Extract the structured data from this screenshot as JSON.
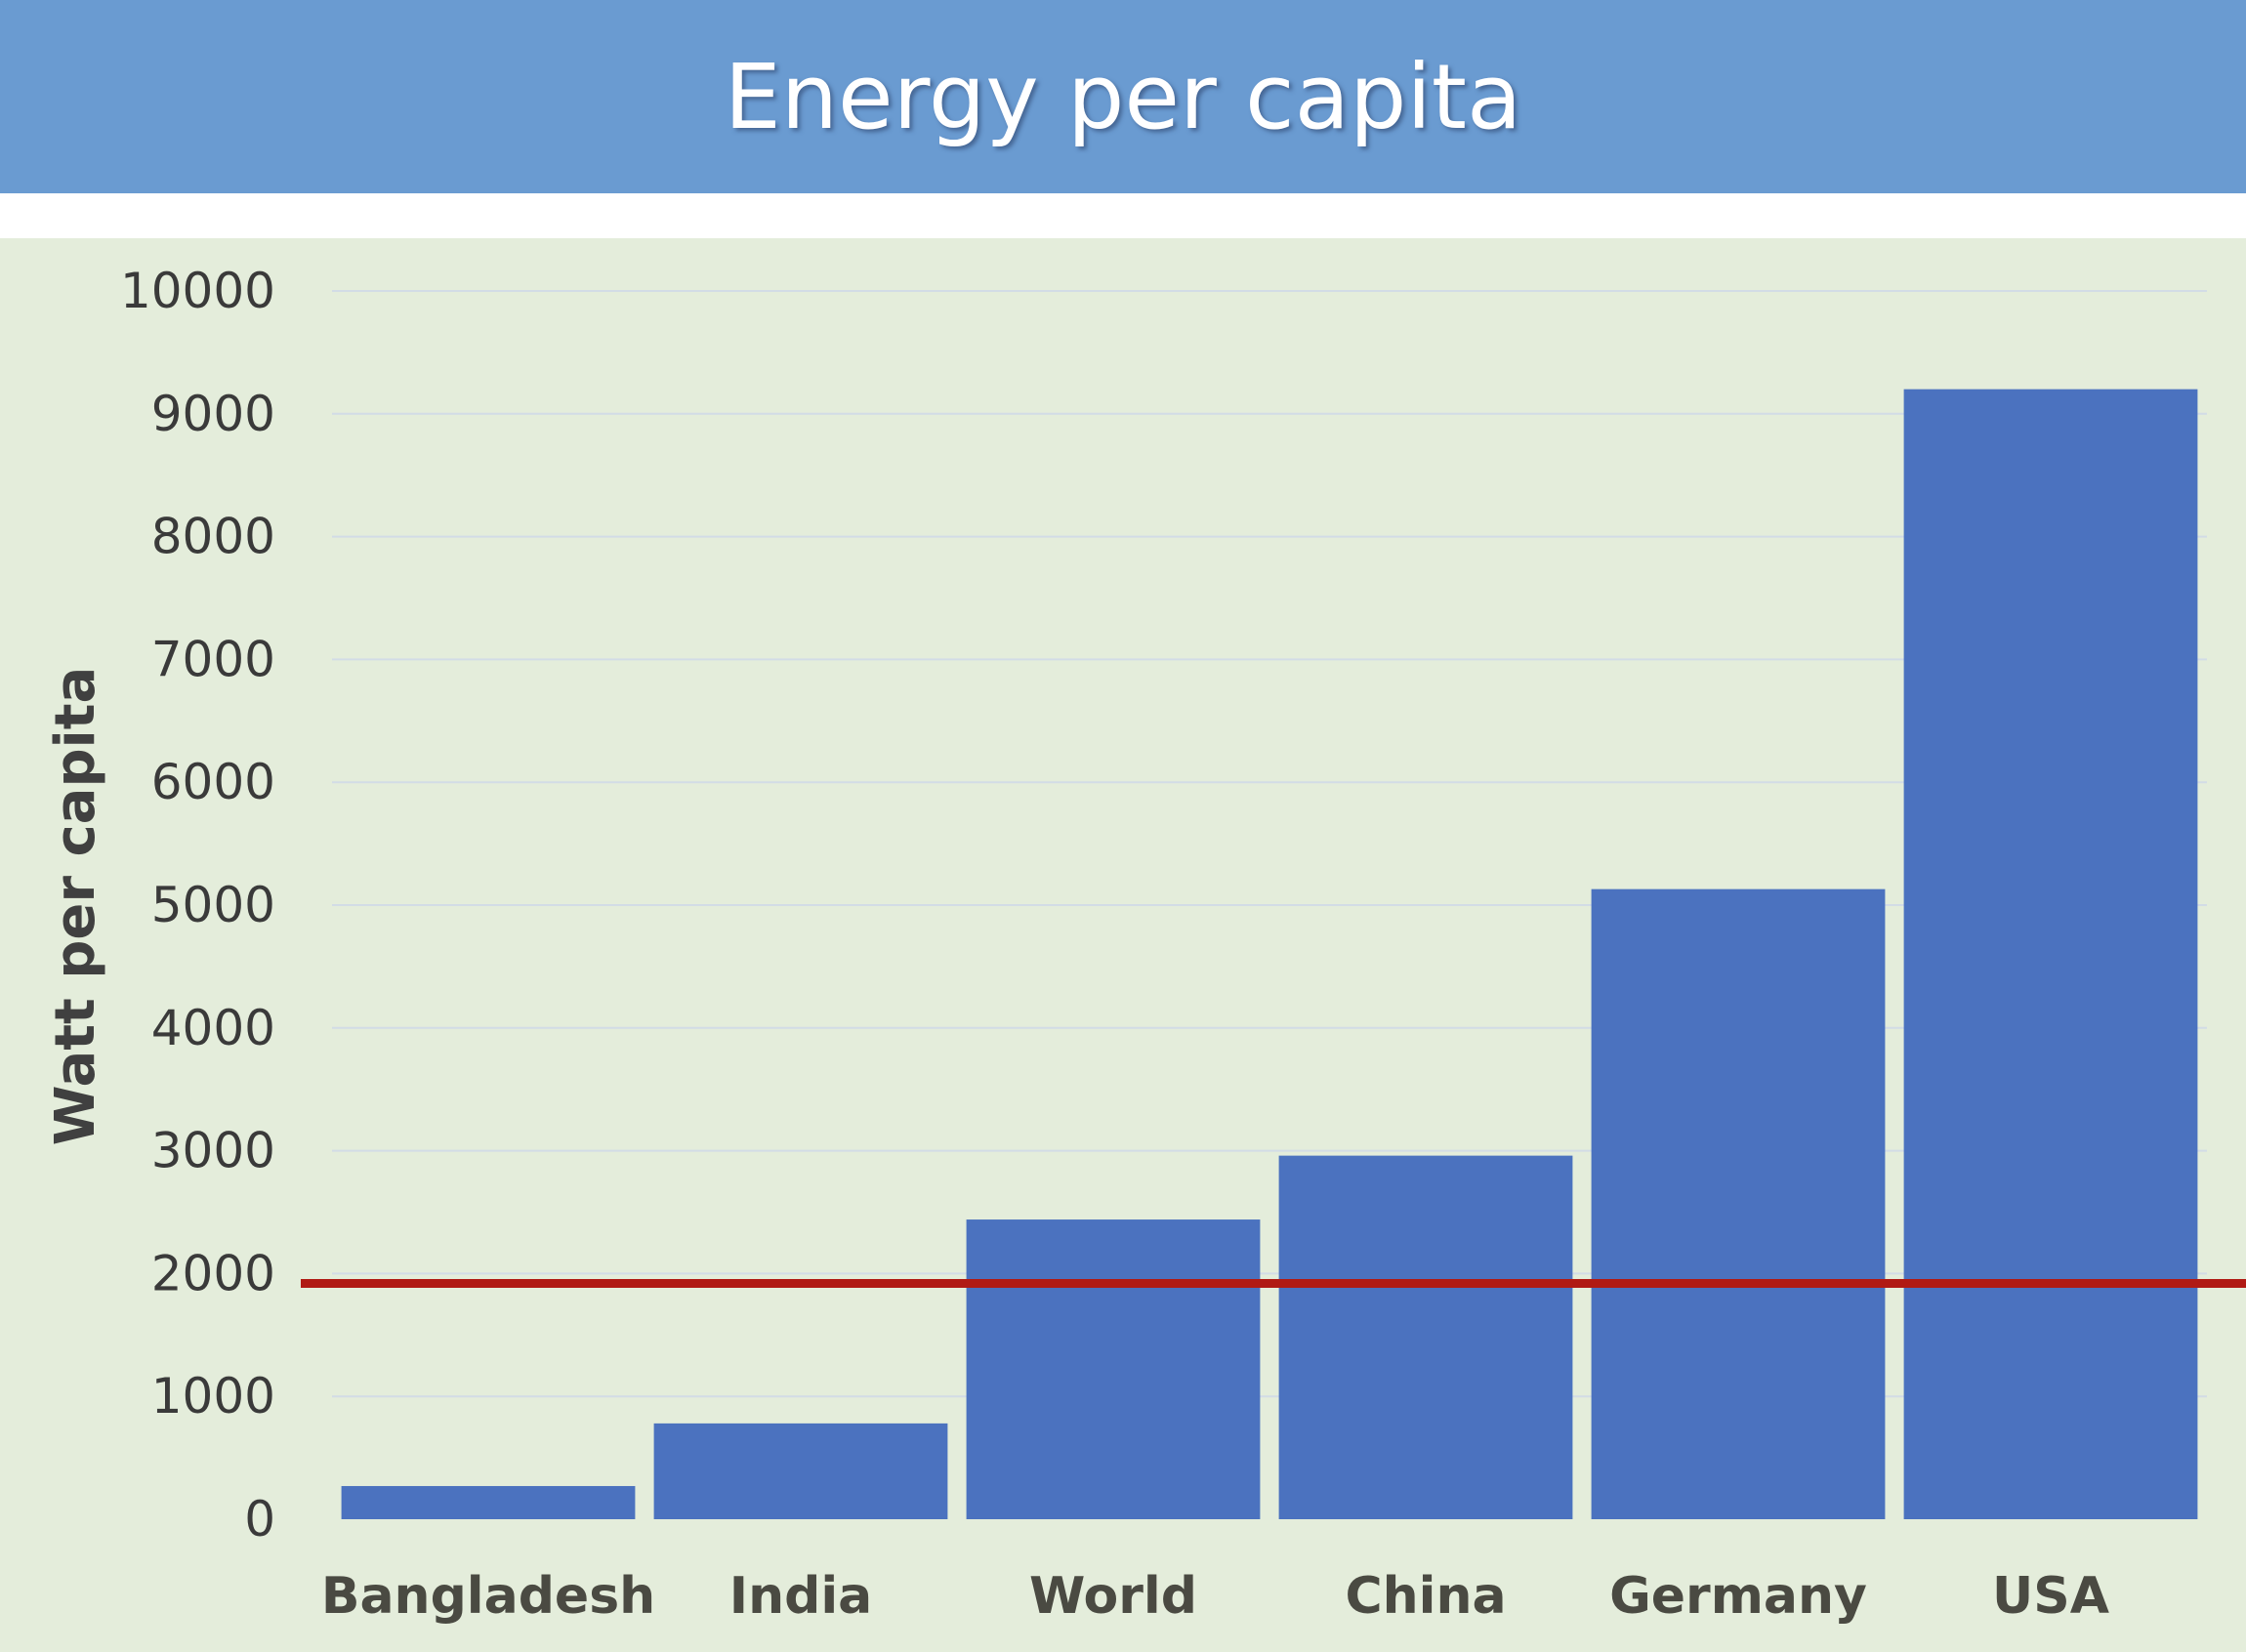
{
  "title": "Energy per capita",
  "colors": {
    "header_bg": "#6a9bd1",
    "plot_bg": "#e4eddb",
    "bar": "#4b72bf",
    "reference_line": "#b01a14",
    "gridline": "#d2dce6"
  },
  "chart_data": {
    "type": "bar",
    "title": "Energy per capita",
    "xlabel": "",
    "ylabel": "Watt per capita",
    "categories": [
      "Bangladesh",
      "India",
      "World",
      "China",
      "Germany",
      "USA"
    ],
    "values": [
      270,
      780,
      2440,
      2960,
      5130,
      9200
    ],
    "ylim": [
      0,
      10000
    ],
    "yticks": [
      "0",
      "1000",
      "2000",
      "3000",
      "4000",
      "5000",
      "6000",
      "7000",
      "8000",
      "9000",
      "10000"
    ],
    "grid": true,
    "reference_line": 1920
  }
}
